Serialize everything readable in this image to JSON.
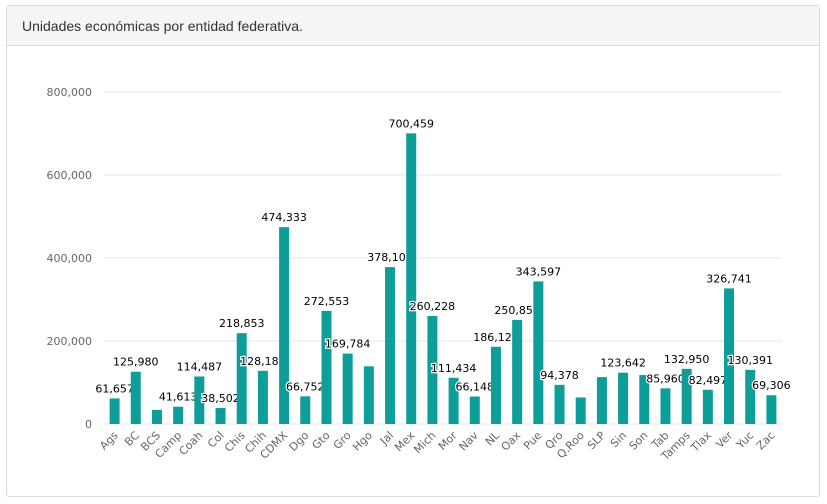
{
  "panel": {
    "title": "Unidades económicas por entidad federativa."
  },
  "colors": {
    "bar": "#0e9e99",
    "grid": "#e6e6e6",
    "axis_text": "#666666",
    "label_text": "#000000"
  },
  "chart_data": {
    "type": "bar",
    "title": "",
    "xlabel": "",
    "ylabel": "",
    "ylim": [
      0,
      800000
    ],
    "y_ticks": [
      {
        "value": 0,
        "label": "0"
      },
      {
        "value": 200000,
        "label": "200,000"
      },
      {
        "value": 400000,
        "label": "400,000"
      },
      {
        "value": 600000,
        "label": "600,000"
      },
      {
        "value": 800000,
        "label": "800,000"
      }
    ],
    "grid": true,
    "categories": [
      "Ags",
      "BC",
      "BCS",
      "Camp",
      "Coah",
      "Col",
      "Chis",
      "Chih",
      "CDMX",
      "Dgo",
      "Gto",
      "Gro",
      "Hgo",
      "Jal",
      "Mex",
      "Mich",
      "Mor",
      "Nav",
      "NL",
      "Oax",
      "Pue",
      "Qro",
      "Q.Roo",
      "SLP",
      "Sin",
      "Son",
      "Tab",
      "Tamps",
      "Tlax",
      "Ver",
      "Yuc",
      "Zac"
    ],
    "values": [
      61657,
      125980,
      34000,
      41613,
      114487,
      38502,
      218853,
      128183,
      474333,
      66752,
      272553,
      169784,
      139000,
      378100,
      700459,
      260228,
      111434,
      66148,
      186120,
      250851,
      343597,
      94378,
      64000,
      113000,
      123642,
      118000,
      85960,
      132950,
      82497,
      326741,
      130391,
      69306
    ],
    "data_labels": [
      "61,657",
      "125,980",
      "",
      "41,613",
      "114,487",
      "38,502",
      "218,853",
      "128,183",
      "474,333",
      "66,752",
      "272,553",
      "169,784",
      "",
      "378,100",
      "700,459",
      "260,228",
      "111,434",
      "66,148",
      "186,120",
      "250,851",
      "343,597",
      "94,378",
      "",
      "",
      "123,642",
      "",
      "85,960",
      "132,950",
      "82,497",
      "326,741",
      "130,391",
      "69,306"
    ]
  }
}
